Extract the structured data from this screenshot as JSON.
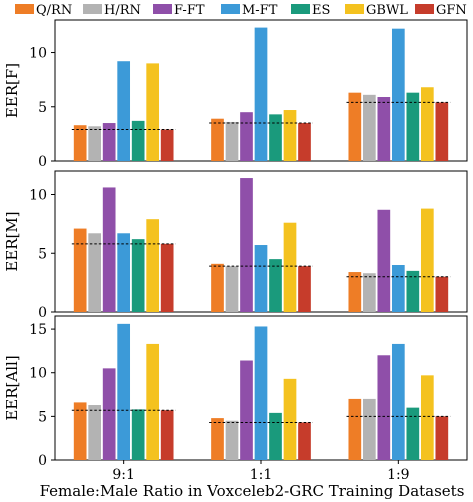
{
  "chart_data": {
    "type": "bar",
    "xlabel": "Female:Male Ratio in Voxceleb2-GRC Training Datasets",
    "categories": [
      "9:1",
      "1:1",
      "1:9"
    ],
    "legend": {
      "placement": "top",
      "entries": [
        "Q/RN",
        "H/RN",
        "F-FT",
        "M-FT",
        "ES",
        "GBWL",
        "GFN"
      ]
    },
    "colors": {
      "Q/RN": "#ee7d26",
      "H/RN": "#b3b3b3",
      "F-FT": "#8f4fa9",
      "M-FT": "#3c9ad8",
      "ES": "#1a9a7c",
      "GBWL": "#f4c21f",
      "GFN": "#c63c2b"
    },
    "panels": [
      {
        "ylabel": "EER[F]",
        "ylim": [
          0,
          13
        ],
        "yticks": [
          0,
          5,
          10
        ],
        "series": [
          {
            "name": "Q/RN",
            "values": [
              3.3,
              3.9,
              6.3
            ]
          },
          {
            "name": "H/RN",
            "values": [
              3.2,
              3.6,
              6.1
            ]
          },
          {
            "name": "F-FT",
            "values": [
              3.5,
              4.5,
              5.9
            ]
          },
          {
            "name": "M-FT",
            "values": [
              9.2,
              12.3,
              12.2
            ]
          },
          {
            "name": "ES",
            "values": [
              3.7,
              4.3,
              6.3
            ]
          },
          {
            "name": "GBWL",
            "values": [
              9.0,
              4.7,
              6.8
            ]
          },
          {
            "name": "GFN",
            "values": [
              2.9,
              3.5,
              5.4
            ]
          }
        ],
        "reference_lines": [
          2.9,
          3.5,
          5.4
        ]
      },
      {
        "ylabel": "EER[M]",
        "ylim": [
          0,
          12
        ],
        "yticks": [
          0,
          5,
          10
        ],
        "series": [
          {
            "name": "Q/RN",
            "values": [
              7.1,
              4.1,
              3.4
            ]
          },
          {
            "name": "H/RN",
            "values": [
              6.7,
              3.9,
              3.3
            ]
          },
          {
            "name": "F-FT",
            "values": [
              10.6,
              11.4,
              8.7
            ]
          },
          {
            "name": "M-FT",
            "values": [
              6.7,
              5.7,
              4.0
            ]
          },
          {
            "name": "ES",
            "values": [
              6.2,
              4.5,
              3.5
            ]
          },
          {
            "name": "GBWL",
            "values": [
              7.9,
              7.6,
              8.8
            ]
          },
          {
            "name": "GFN",
            "values": [
              5.8,
              3.9,
              3.0
            ]
          }
        ],
        "reference_lines": [
          5.8,
          3.9,
          3.0
        ]
      },
      {
        "ylabel": "EER[All]",
        "ylim": [
          0,
          16.5
        ],
        "yticks": [
          0,
          5,
          10,
          15
        ],
        "series": [
          {
            "name": "Q/RN",
            "values": [
              6.6,
              4.8,
              7.0
            ]
          },
          {
            "name": "H/RN",
            "values": [
              6.3,
              4.5,
              7.0
            ]
          },
          {
            "name": "F-FT",
            "values": [
              10.5,
              11.4,
              12.0
            ]
          },
          {
            "name": "M-FT",
            "values": [
              15.6,
              15.3,
              13.3
            ]
          },
          {
            "name": "ES",
            "values": [
              5.8,
              5.4,
              6.0
            ]
          },
          {
            "name": "GBWL",
            "values": [
              13.3,
              9.3,
              9.7
            ]
          },
          {
            "name": "GFN",
            "values": [
              5.7,
              4.3,
              5.0
            ]
          }
        ],
        "reference_lines": [
          5.7,
          4.3,
          5.0
        ]
      }
    ]
  }
}
